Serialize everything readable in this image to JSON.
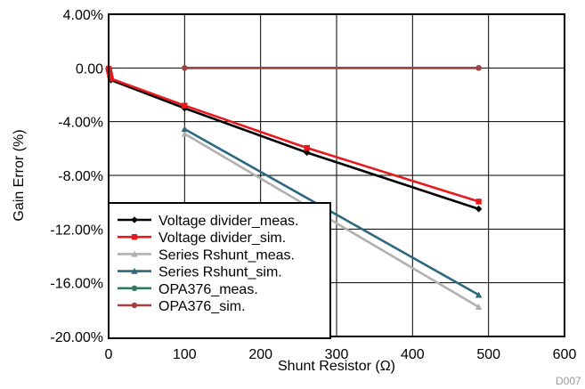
{
  "chart_data": {
    "type": "line",
    "xlabel": "Shunt Resistor (Ω)",
    "ylabel": "Gain Error (%)",
    "xlim": [
      0,
      600
    ],
    "ylim": [
      -20,
      4
    ],
    "xticks": [
      0,
      100,
      200,
      300,
      400,
      500,
      600
    ],
    "xtick_labels": [
      "0",
      "100",
      "200",
      "300",
      "400",
      "500",
      "600"
    ],
    "yticks": [
      4,
      0,
      -4,
      -8,
      -12,
      -16,
      -20
    ],
    "ytick_labels": [
      "4.00%",
      "0.00",
      "-4.00%",
      "-8.00%",
      "-12.00%",
      "-16.00%",
      "-20.00%"
    ],
    "grid": true,
    "legend_position": "bottom-left",
    "corner_text": "D007",
    "series": [
      {
        "name": "Voltage divider_meas.",
        "color": "#000000",
        "marker": "diamond",
        "points": [
          [
            0,
            -0.05
          ],
          [
            1,
            -0.3
          ],
          [
            2,
            -0.6
          ],
          [
            3,
            -0.9
          ],
          [
            100,
            -3.0
          ],
          [
            261,
            -6.3
          ],
          [
            487,
            -10.5
          ]
        ]
      },
      {
        "name": "Voltage divider_sim.",
        "color": "#e8191c",
        "marker": "square",
        "points": [
          [
            0,
            -0.05
          ],
          [
            1,
            -0.3
          ],
          [
            2,
            -0.55
          ],
          [
            3,
            -0.8
          ],
          [
            100,
            -2.8
          ],
          [
            261,
            -5.95
          ],
          [
            487,
            -9.95
          ]
        ]
      },
      {
        "name": "Series Rshunt_meas.",
        "color": "#b0b0b0",
        "marker": "triangle",
        "points": [
          [
            100,
            -4.9
          ],
          [
            487,
            -17.8
          ]
        ]
      },
      {
        "name": "Series Rshunt_sim.",
        "color": "#2e6880",
        "marker": "triangle",
        "points": [
          [
            100,
            -4.55
          ],
          [
            487,
            -16.9
          ]
        ]
      },
      {
        "name": "OPA376_meas.",
        "color": "#2e7a5a",
        "marker": "circle",
        "points": [
          [
            100,
            0.0
          ],
          [
            487,
            0.0
          ]
        ]
      },
      {
        "name": "OPA376_sim.",
        "color": "#a04040",
        "marker": "circle",
        "points": [
          [
            100,
            0.0
          ],
          [
            487,
            0.0
          ]
        ]
      }
    ]
  }
}
